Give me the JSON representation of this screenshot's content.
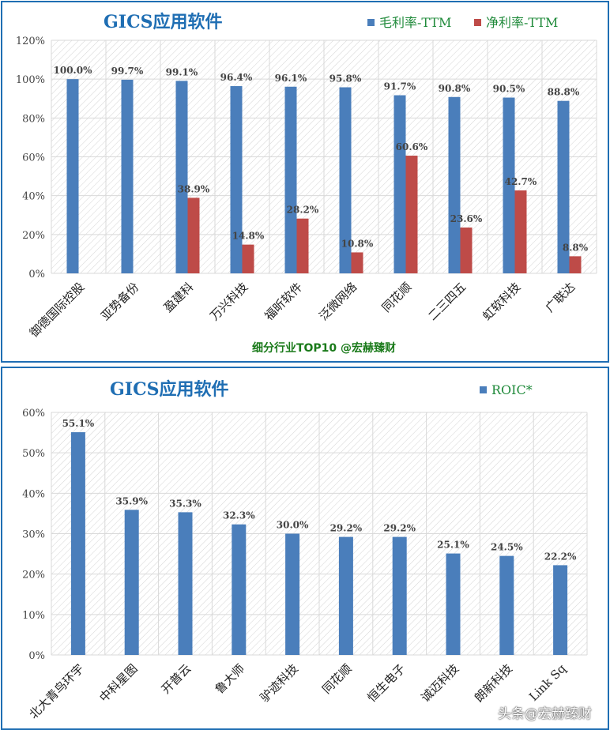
{
  "chart_data": [
    {
      "type": "bar",
      "title": "GICS应用软件",
      "subtitle": "细分行业TOP10 @宏赫臻财",
      "ylim": [
        0,
        120
      ],
      "yticks": [
        0,
        20,
        40,
        60,
        80,
        100,
        120
      ],
      "grid": true,
      "legend": "top-right",
      "categories": [
        "御德国际控股",
        "亚势备份",
        "盈建科",
        "万兴科技",
        "福昕软件",
        "泛微网络",
        "同花顺",
        "二三四五",
        "虹软科技",
        "广联达"
      ],
      "series": [
        {
          "name": "毛利率-TTM",
          "color": "#4a7ebb",
          "values": [
            100.0,
            99.7,
            99.1,
            96.4,
            96.1,
            95.8,
            91.7,
            90.8,
            90.5,
            88.8
          ],
          "labels": [
            "100.0%",
            "99.7%",
            "99.1%",
            "96.4%",
            "96.1%",
            "95.8%",
            "91.7%",
            "90.8%",
            "90.5%",
            "88.8%"
          ]
        },
        {
          "name": "净利率-TTM",
          "color": "#be4b48",
          "values": [
            null,
            null,
            38.9,
            14.8,
            28.2,
            10.8,
            60.6,
            23.6,
            42.7,
            8.8
          ],
          "labels": [
            "",
            "",
            "38.9%",
            "14.8%",
            "28.2%",
            "10.8%",
            "60.6%",
            "23.6%",
            "42.7%",
            "8.8%"
          ]
        }
      ]
    },
    {
      "type": "bar",
      "title": "GICS应用软件",
      "ylim": [
        0,
        60
      ],
      "yticks": [
        0,
        10,
        20,
        30,
        40,
        50,
        60
      ],
      "grid": true,
      "legend": "top-right",
      "categories": [
        "北大青鸟环宇",
        "中科星图",
        "开普云",
        "鲁大师",
        "驴迹科技",
        "同花顺",
        "恒生电子",
        "诚迈科技",
        "朗新科技",
        "Link Sq"
      ],
      "series": [
        {
          "name": "ROIC*",
          "color": "#4a7ebb",
          "values": [
            55.1,
            35.9,
            35.3,
            32.3,
            30.0,
            29.2,
            29.2,
            25.1,
            24.5,
            22.2
          ],
          "labels": [
            "55.1%",
            "35.9%",
            "35.3%",
            "32.3%",
            "30.0%",
            "29.2%",
            "29.2%",
            "25.1%",
            "24.5%",
            "22.2%"
          ]
        }
      ]
    }
  ],
  "watermark": "头条@宏赫臻财"
}
